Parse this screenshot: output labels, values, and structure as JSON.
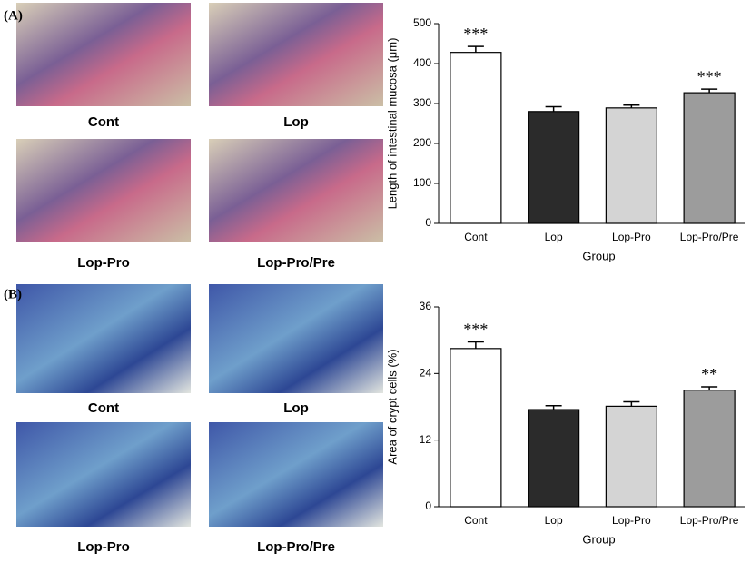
{
  "panels": [
    {
      "label": "(A)",
      "images": [
        "Cont",
        "Lop",
        "Lop-Pro",
        "Lop-Pro/Pre"
      ]
    },
    {
      "label": "(B)",
      "images": [
        "Cont",
        "Lop",
        "Lop-Pro",
        "Lop-Pro/Pre"
      ]
    }
  ],
  "chart_data": [
    {
      "type": "bar",
      "y_label": "Length of intestinal mucosa (μm)",
      "x_label": "Group",
      "categories": [
        "Cont",
        "Lop",
        "Lop-Pro",
        "Lop-Pro/Pre"
      ],
      "values": [
        428,
        280,
        289,
        327
      ],
      "errors": [
        15,
        12,
        7,
        9
      ],
      "colors": [
        "#ffffff",
        "#2b2b2b",
        "#d4d4d4",
        "#9c9c9c"
      ],
      "annotations": [
        {
          "index": 0,
          "text": "***"
        },
        {
          "index": 3,
          "text": "***"
        }
      ],
      "ylim": [
        0,
        500
      ],
      "yticks": [
        0,
        100,
        200,
        300,
        400,
        500
      ]
    },
    {
      "type": "bar",
      "y_label": "Area of crypt cells (%)",
      "x_label": "Group",
      "categories": [
        "Cont",
        "Lop",
        "Lop-Pro",
        "Lop-Pro/Pre"
      ],
      "values": [
        28.5,
        17.5,
        18.1,
        21.0
      ],
      "errors": [
        1.2,
        0.7,
        0.8,
        0.6
      ],
      "colors": [
        "#ffffff",
        "#2b2b2b",
        "#d4d4d4",
        "#9c9c9c"
      ],
      "annotations": [
        {
          "index": 0,
          "text": "***"
        },
        {
          "index": 3,
          "text": "**"
        }
      ],
      "ylim": [
        0,
        36
      ],
      "yticks": [
        0,
        12,
        24,
        36
      ]
    }
  ]
}
